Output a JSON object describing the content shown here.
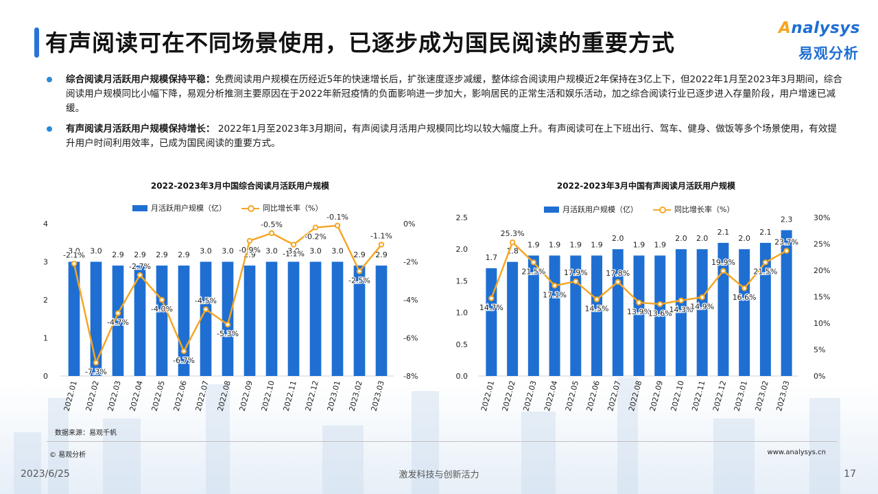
{
  "title": "有声阅读可在不同场景使用，已逐步成为国民阅读的重要方式",
  "logo": {
    "en_prefix": "A",
    "en_rest": "nalysys",
    "cn": "易观分析"
  },
  "bullets": [
    {
      "bold": "综合阅读月活跃用户规模保持平稳：",
      "text": "免费阅读用户规模在历经近5年的快速增长后，扩张速度逐步减缓，整体综合阅读用户规模近2年保持在3亿上下，但2022年1月至2023年3月期间，综合阅读用户规模同比小幅下降，易观分析推测主要原因在于2022年新冠疫情的负面影响进一步加大，影响居民的正常生活和娱乐活动，加之综合阅读行业已逐步进入存量阶段，用户增速已减缓。"
    },
    {
      "bold": "有声阅读月活跃用户规模保持增长：",
      "text": " 2022年1月至2023年3月期间，有声阅读月活用户规模同比均以较大幅度上升。有声阅读可在上下班出行、驾车、健身、做饭等多个场景使用，有效提升用户时间利用效率，已成为国民阅读的重要方式。"
    }
  ],
  "colors": {
    "bar": "#1f6fd3",
    "line": "#f5a623",
    "accent": "#2a73d6"
  },
  "chart_data": [
    {
      "type": "bar+line",
      "title": "2022-2023年3月中国综合阅读月活跃用户规模",
      "categories": [
        "2022.01",
        "2022.02",
        "2022.03",
        "2022.04",
        "2022.05",
        "2022.06",
        "2022.07",
        "2022.08",
        "2022.09",
        "2022.10",
        "2022.11",
        "2022.12",
        "2023.01",
        "2023.02",
        "2023.03"
      ],
      "series": [
        {
          "name": "月活跃用户规模（亿）",
          "kind": "bar",
          "axis": "left",
          "values": [
            3.0,
            3.0,
            2.9,
            2.9,
            2.9,
            2.9,
            3.0,
            3.0,
            2.9,
            3.0,
            3.0,
            3.0,
            3.0,
            2.9,
            2.9
          ],
          "labels": [
            "3.0",
            "3.0",
            "2.9",
            "2.9",
            "2.9",
            "2.9",
            "3.0",
            "3.0",
            "2.9",
            "3.0",
            "3.0",
            "3.0",
            "3.0",
            "2.9",
            "2.9"
          ]
        },
        {
          "name": "同比增长率（%）",
          "kind": "line",
          "axis": "right",
          "values": [
            -2.1,
            -7.3,
            -4.7,
            -2.7,
            -4.0,
            -6.7,
            -4.5,
            -5.3,
            -0.9,
            -0.5,
            -1.1,
            -0.2,
            -0.1,
            -2.5,
            -1.1
          ],
          "labels": [
            "-2.1%",
            "-7.3%",
            "-4.7%",
            "-2.7%",
            "-4.0%",
            "-6.7%",
            "-4.5%",
            "-5.3%",
            "-0.9%",
            "-0.5%",
            "-1.1%",
            "-0.2%",
            "-0.1%",
            "-2.5%",
            "-1.1%"
          ]
        }
      ],
      "ylim_left": [
        0,
        4
      ],
      "yticks_left": [
        "0",
        "1",
        "2",
        "3",
        "4"
      ],
      "ylim_right": [
        -8,
        0
      ],
      "yticks_right": [
        "-8%",
        "-6%",
        "-4%",
        "-2%",
        "0%"
      ],
      "legend": "top",
      "grid": false
    },
    {
      "type": "bar+line",
      "title": "2022-2023年3月中国有声阅读月活跃用户规模",
      "categories": [
        "2022.01",
        "2022.02",
        "2022.03",
        "2022.04",
        "2022.05",
        "2022.06",
        "2022.07",
        "2022.08",
        "2022.09",
        "2022.10",
        "2022.11",
        "2022.12",
        "2023.01",
        "2023.02",
        "2023.03"
      ],
      "series": [
        {
          "name": "月活跃用户规模（亿）",
          "kind": "bar",
          "axis": "left",
          "values": [
            1.7,
            1.8,
            1.9,
            1.9,
            1.9,
            1.9,
            2.0,
            1.9,
            1.9,
            2.0,
            2.0,
            2.1,
            2.0,
            2.1,
            2.3
          ],
          "labels": [
            "1.7",
            "1.8",
            "1.9",
            "1.9",
            "1.9",
            "1.9",
            "2.0",
            "1.9",
            "1.9",
            "2.0",
            "2.0",
            "2.1",
            "2.0",
            "2.1",
            "2.3"
          ]
        },
        {
          "name": "同比增长率（%）",
          "kind": "line",
          "axis": "right",
          "values": [
            14.7,
            25.3,
            21.5,
            17.1,
            17.9,
            14.5,
            17.8,
            13.9,
            13.6,
            14.3,
            14.9,
            19.9,
            16.6,
            21.5,
            23.7
          ],
          "labels": [
            "14.7%",
            "25.3%",
            "21.5%",
            "17.1%",
            "17.9%",
            "14.5%",
            "17.8%",
            "13.9%",
            "13.6%",
            "14.3%",
            "14.9%",
            "19.9%",
            "16.6%",
            "21.5%",
            "23.7%"
          ]
        }
      ],
      "ylim_left": [
        0,
        2.5
      ],
      "yticks_left": [
        "0.0",
        "0.5",
        "1.0",
        "1.5",
        "2.0",
        "2.5"
      ],
      "ylim_right": [
        0,
        30
      ],
      "yticks_right": [
        "0%",
        "5%",
        "10%",
        "15%",
        "20%",
        "25%",
        "30%"
      ],
      "legend": "top",
      "grid": false
    }
  ],
  "source": "数据来源：易观千帆",
  "copyright": "© 易观分析",
  "url": "www.analysys.cn",
  "footer": {
    "date": "2023/6/25",
    "slogan": "激发科技与创新活力",
    "page": "17"
  }
}
